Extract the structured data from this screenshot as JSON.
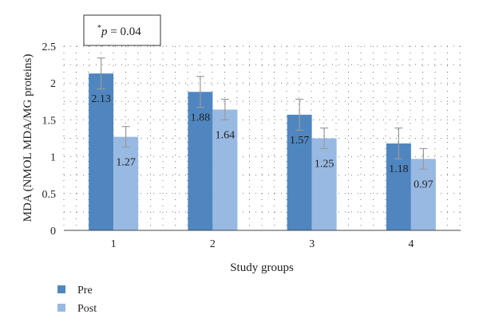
{
  "chart_data": {
    "type": "bar",
    "categories": [
      "1",
      "2",
      "3",
      "4"
    ],
    "series": [
      {
        "name": "Pre",
        "values": [
          2.13,
          1.88,
          1.57,
          1.18
        ],
        "errors": [
          0.21,
          0.21,
          0.21,
          0.21
        ],
        "color": "#4f86c0"
      },
      {
        "name": "Post",
        "values": [
          1.27,
          1.64,
          1.25,
          0.97
        ],
        "errors": [
          0.14,
          0.14,
          0.14,
          0.14
        ],
        "color": "#98b9e2"
      }
    ],
    "xlabel": "Study groups",
    "ylabel": "MDA (NMOL MDA/MG proteins)",
    "ylim": [
      0,
      2.5
    ],
    "yticks": [
      "0",
      "0.5",
      "1",
      "1.5",
      "2",
      "2.5"
    ],
    "data_labels": [
      [
        "2.13",
        "1.88",
        "1.57",
        "1.18"
      ],
      [
        "1.27",
        "1.64",
        "1.25",
        "0.97"
      ]
    ],
    "annotation": {
      "superscript": "*",
      "text": "p",
      "suffix": " = 0.04"
    },
    "grid": "dotted",
    "legend_position": "bottom-left"
  }
}
